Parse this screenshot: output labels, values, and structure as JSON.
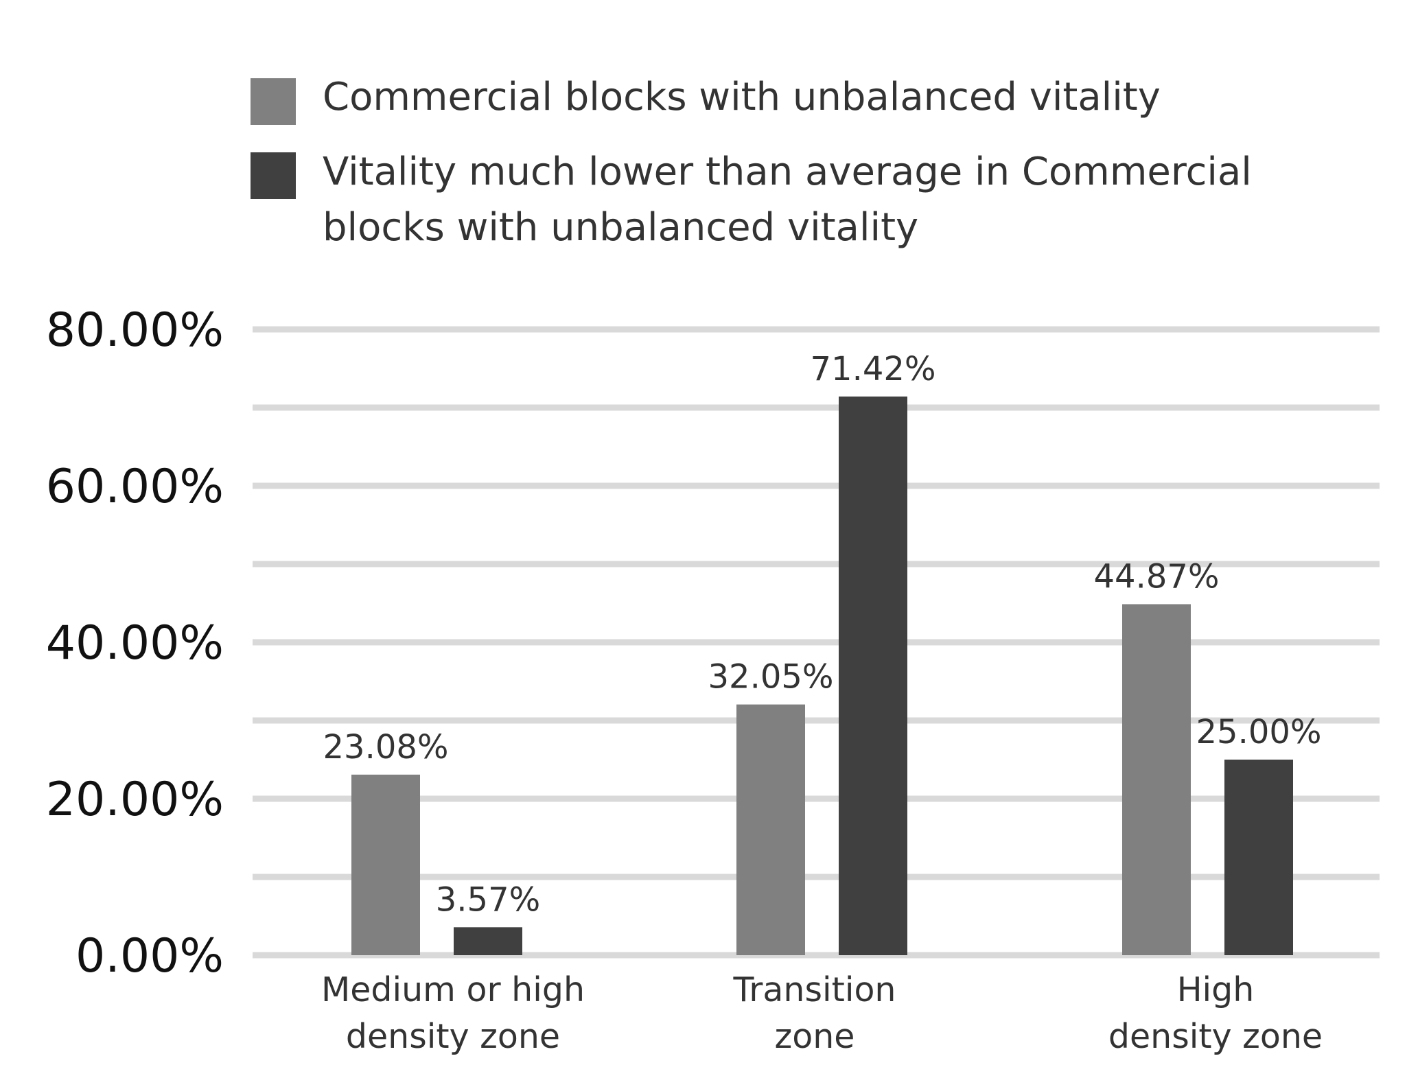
{
  "chart_data": {
    "type": "bar",
    "title": "",
    "xlabel": "",
    "ylabel": "",
    "ylim": [
      0,
      80
    ],
    "grid": true,
    "minor_grid_step": 10,
    "legend_position": "top",
    "categories": [
      [
        "Medium or high",
        "density zone"
      ],
      [
        "Transition",
        "zone"
      ],
      [
        "High",
        "density zone"
      ]
    ],
    "y_ticks": [
      {
        "value": 0,
        "label": "0.00%"
      },
      {
        "value": 20,
        "label": "20.00%"
      },
      {
        "value": 40,
        "label": "40.00%"
      },
      {
        "value": 60,
        "label": "60.00%"
      },
      {
        "value": 80,
        "label": "80.00%"
      }
    ],
    "series": [
      {
        "name": [
          "Commercial blocks with unbalanced vitality"
        ],
        "color": "#808080",
        "values": [
          23.08,
          32.05,
          44.87
        ],
        "labels": [
          "23.08%",
          "32.05%",
          "44.87%"
        ]
      },
      {
        "name": [
          "Vitality much lower than average in Commercial",
          "blocks with unbalanced vitality"
        ],
        "color": "#404040",
        "values": [
          3.57,
          71.42,
          25.0
        ],
        "labels": [
          "3.57%",
          "71.42%",
          "25.00%"
        ]
      }
    ],
    "gridline_color": "#d9d9d9"
  }
}
